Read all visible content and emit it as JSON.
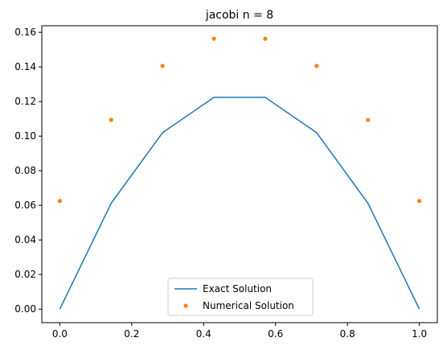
{
  "chart_data": {
    "type": "line",
    "title": "jacobi n = 8",
    "xlabel": "",
    "ylabel": "",
    "xlim": [
      -0.05,
      1.05
    ],
    "ylim": [
      -0.0078,
      0.1638
    ],
    "grid": false,
    "legend_position": "lower center",
    "x_ticks": [
      0.0,
      0.2,
      0.4,
      0.6,
      0.8,
      1.0
    ],
    "x_tick_labels": [
      "0.0",
      "0.2",
      "0.4",
      "0.6",
      "0.8",
      "1.0"
    ],
    "y_ticks": [
      0.0,
      0.02,
      0.04,
      0.06,
      0.08,
      0.1,
      0.12,
      0.14,
      0.16
    ],
    "y_tick_labels": [
      "0.00",
      "0.02",
      "0.04",
      "0.06",
      "0.08",
      "0.10",
      "0.12",
      "0.14",
      "0.16"
    ],
    "series": [
      {
        "name": "Exact Solution",
        "kind": "line",
        "color": "#1f77b4",
        "x": [
          0.0,
          0.142857,
          0.285714,
          0.428571,
          0.571429,
          0.714286,
          0.857143,
          1.0
        ],
        "y": [
          0.0,
          0.0612,
          0.102,
          0.1224,
          0.1224,
          0.102,
          0.0612,
          0.0
        ]
      },
      {
        "name": "Numerical Solution",
        "kind": "scatter",
        "color": "#ff7f0e",
        "x": [
          0.0,
          0.142857,
          0.285714,
          0.428571,
          0.571429,
          0.714286,
          0.857143,
          1.0
        ],
        "y": [
          0.0625,
          0.1094,
          0.1406,
          0.1563,
          0.1563,
          0.1406,
          0.1094,
          0.0625
        ]
      }
    ]
  }
}
